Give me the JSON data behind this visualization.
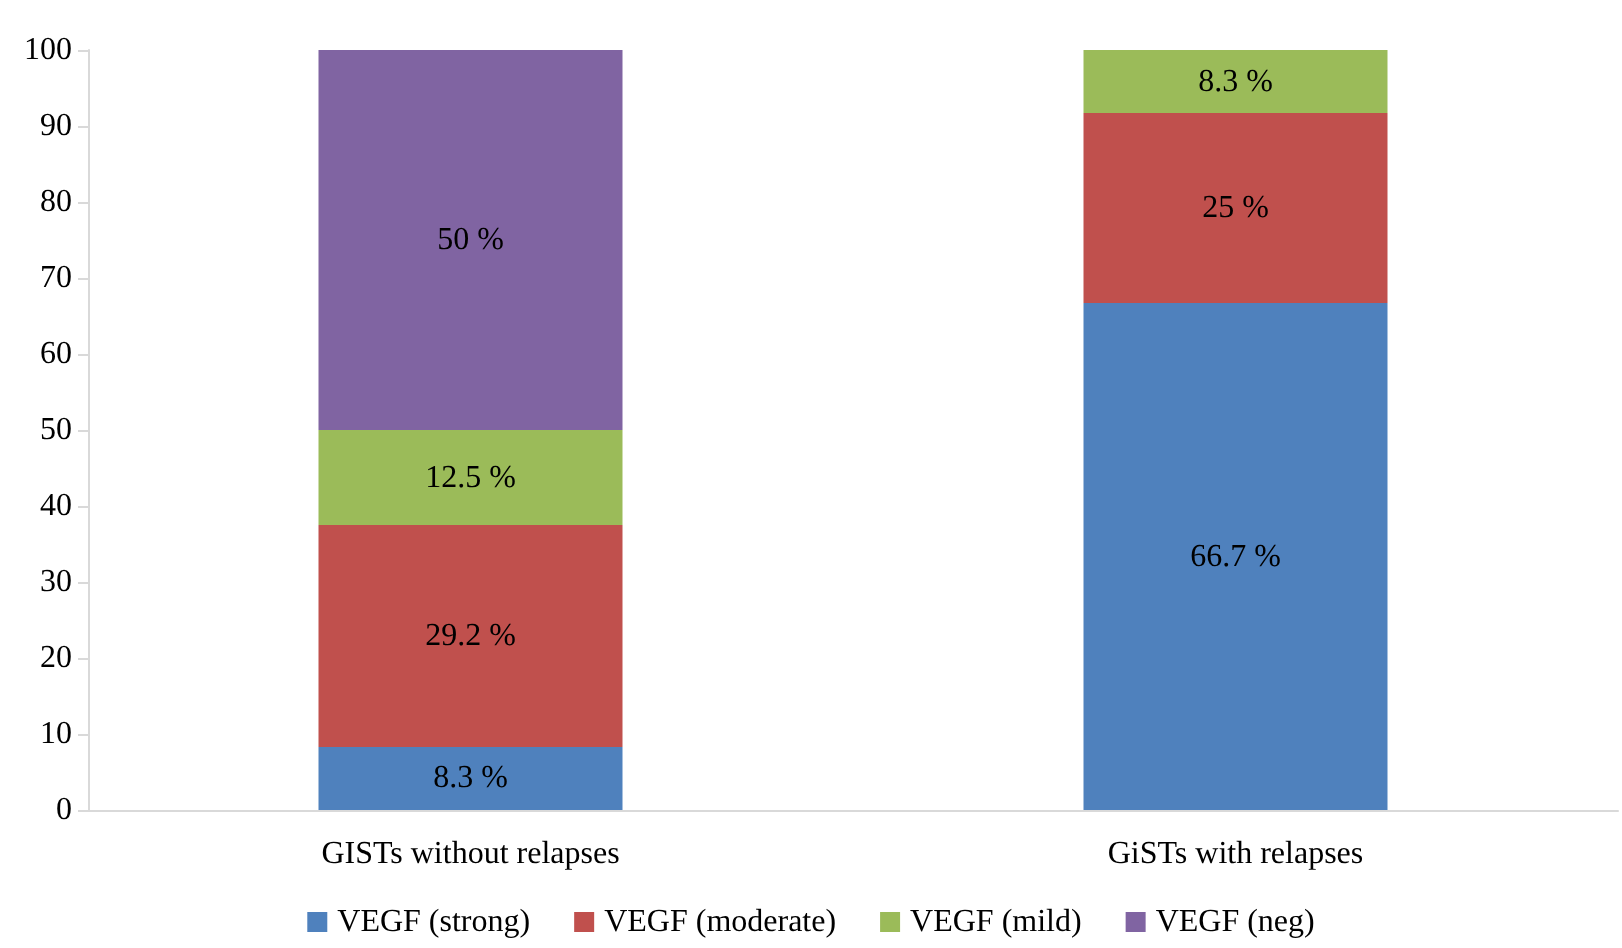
{
  "chart_data": {
    "type": "bar",
    "stacked": true,
    "categories": [
      "GISTs without relapses",
      "GiSTs with relapses"
    ],
    "series": [
      {
        "name": "VEGF (strong)",
        "color": "#4f81bd",
        "values": [
          8.3,
          66.7
        ],
        "value_labels": [
          "8.3 %",
          "66.7 %"
        ]
      },
      {
        "name": "VEGF (moderate)",
        "color": "#c0504d",
        "values": [
          29.2,
          25
        ],
        "value_labels": [
          "29.2 %",
          "25 %"
        ]
      },
      {
        "name": "VEGF (mild)",
        "color": "#9bbb59",
        "values": [
          12.5,
          8.3
        ],
        "value_labels": [
          "12.5 %",
          "8.3 %"
        ]
      },
      {
        "name": "VEGF (neg)",
        "color": "#8064a2",
        "values": [
          50,
          null
        ],
        "value_labels": [
          "50 %",
          null
        ]
      }
    ],
    "ylim": [
      0,
      100
    ],
    "yticks": [
      0,
      10,
      20,
      30,
      40,
      50,
      60,
      70,
      80,
      90,
      100
    ],
    "grid": false,
    "legend": "bottom"
  }
}
